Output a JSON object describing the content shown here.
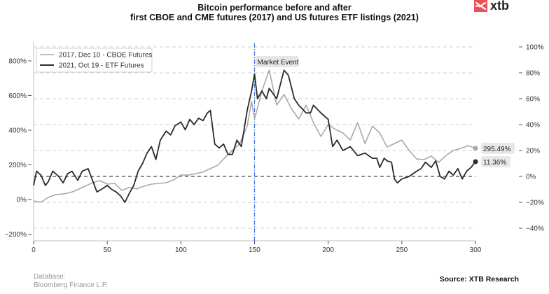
{
  "header": {
    "title_line1": "Bitcoin performance before and after",
    "title_line2": "first CBOE and CME futures (2017) and US futures ETF listings (2021)",
    "logo_text": "xtb",
    "logo_icon": "xtb-x-icon"
  },
  "footer": {
    "database_label": "Database:",
    "database_value": "Bloomberg Finance L.P.",
    "source": "Source: XTB Research"
  },
  "colors": {
    "series_2017": "#a9a9a9",
    "series_2021": "#2b2b2b",
    "event_line": "#3b6fd6",
    "zero_line": "#5a6b78",
    "grid": "#cfcfcf",
    "logo": "#ee4f55"
  },
  "chart_data": {
    "type": "line",
    "title": "Bitcoin performance before and after first CBOE and CME futures (2017) and US futures ETF listings (2021)",
    "xlabel": "",
    "ylabel_left": "",
    "ylabel_right": "",
    "xlim": [
      0,
      300
    ],
    "ylim_left": [
      -200,
      900
    ],
    "ylim_right": [
      -50,
      110
    ],
    "x_ticks": [
      "0",
      "50",
      "100",
      "150",
      "200",
      "250",
      "300"
    ],
    "y_ticks_left": [
      "-200%",
      "0%",
      "200%",
      "400%",
      "600%",
      "800%"
    ],
    "y_ticks_right": [
      "-40%",
      "-20%",
      "0%",
      "20%",
      "40%",
      "60%",
      "80%",
      "100%"
    ],
    "grid": "horizontal dashed at right-axis ticks",
    "legend_position": "top-left",
    "annotation": {
      "x": 150,
      "label": "Market Event"
    },
    "series": [
      {
        "name": "2017, Dec 10 - CBOE Futures",
        "axis": "left",
        "end_label": "295.49%",
        "x": [
          0,
          5,
          10,
          15,
          20,
          25,
          30,
          35,
          40,
          45,
          50,
          55,
          60,
          65,
          70,
          75,
          80,
          85,
          90,
          95,
          100,
          105,
          110,
          115,
          120,
          125,
          130,
          135,
          140,
          145,
          148,
          150,
          155,
          160,
          165,
          170,
          175,
          180,
          185,
          190,
          195,
          200,
          205,
          210,
          215,
          220,
          225,
          230,
          235,
          240,
          245,
          250,
          255,
          260,
          265,
          270,
          275,
          280,
          285,
          290,
          295,
          300
        ],
        "values": [
          -8,
          -16,
          12,
          28,
          32,
          40,
          57,
          77,
          97,
          109,
          89,
          93,
          53,
          69,
          61,
          77,
          89,
          93,
          97,
          113,
          141,
          141,
          149,
          158,
          178,
          198,
          242,
          283,
          323,
          424,
          566,
          465,
          626,
          747,
          545,
          606,
          525,
          465,
          545,
          444,
          364,
          432,
          404,
          384,
          343,
          444,
          323,
          424,
          384,
          303,
          323,
          343,
          283,
          234,
          230,
          251,
          214,
          254,
          283,
          295,
          311,
          295.49
        ]
      },
      {
        "name": "2021, Oct 19 - ETF Futures",
        "axis": "right",
        "end_label": "11.36%",
        "x": [
          0,
          2,
          5,
          8,
          10,
          13,
          17,
          20,
          23,
          26,
          30,
          33,
          37,
          40,
          43,
          46,
          50,
          53,
          56,
          59,
          62,
          65,
          68,
          71,
          74,
          77,
          80,
          83,
          86,
          90,
          93,
          96,
          100,
          103,
          106,
          109,
          112,
          115,
          118,
          120,
          123,
          126,
          129,
          132,
          135,
          138,
          141,
          145,
          148,
          150,
          152,
          155,
          158,
          160,
          165,
          170,
          173,
          177,
          180,
          185,
          188,
          190,
          195,
          200,
          203,
          206,
          210,
          215,
          220,
          225,
          230,
          233,
          235,
          238,
          240,
          243,
          245,
          247,
          250,
          255,
          260,
          263,
          266,
          270,
          273,
          276,
          279,
          282,
          285,
          288,
          291,
          294,
          297,
          300
        ],
        "values": [
          -7,
          4,
          1,
          -7,
          -4,
          4,
          0,
          -5,
          2,
          4,
          -3,
          4,
          6,
          -3,
          -12,
          -10,
          -7,
          -10,
          -12,
          -15,
          -20,
          -13,
          -7,
          4,
          10,
          18,
          23,
          13,
          28,
          35,
          32,
          39,
          42,
          36,
          44,
          40,
          45,
          43,
          49,
          51,
          25,
          22,
          25,
          17,
          17,
          28,
          23,
          51,
          66,
          79,
          60,
          66,
          60,
          68,
          60,
          82,
          78,
          60,
          55,
          49,
          49,
          55,
          49,
          44,
          23,
          28,
          20,
          23,
          16,
          18,
          14,
          14,
          7,
          14,
          12,
          11,
          -2,
          -5,
          -2,
          0,
          4,
          6,
          11,
          7,
          12,
          0,
          -2,
          4,
          1,
          6,
          -2,
          4,
          7,
          11.36
        ]
      }
    ]
  }
}
